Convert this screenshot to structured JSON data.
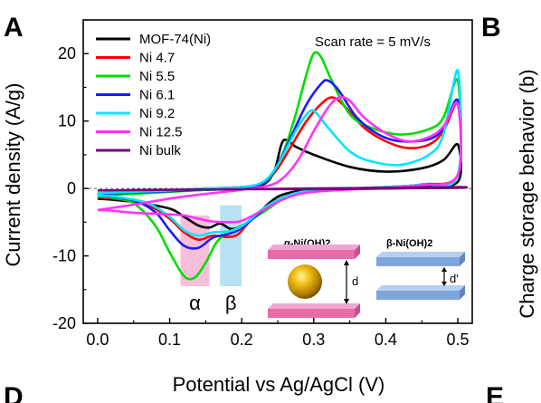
{
  "panels": {
    "a": "A",
    "b": "B",
    "d": "D",
    "e": "E"
  },
  "right_axis_label": "Charge storage behavior (b)",
  "chart_data": {
    "type": "line",
    "title": "",
    "xlabel": "Potential vs Ag/AgCl (V)",
    "ylabel": "Current density (A/g)",
    "xlim": [
      -0.02,
      0.52
    ],
    "ylim": [
      -20,
      25
    ],
    "xticks": [
      "0.0",
      "0.1",
      "0.2",
      "0.3",
      "0.4",
      "0.5"
    ],
    "yticks": [
      "-20",
      "-10",
      "0",
      "10",
      "20"
    ],
    "grid": false,
    "legend_position": "top-left",
    "annotation": "Scan rate = 5 mV/s",
    "series": [
      {
        "name": "MOF-74(Ni)",
        "color": "#000000",
        "anodic": [
          [
            0.0,
            -0.8
          ],
          [
            0.05,
            -0.6
          ],
          [
            0.1,
            -0.4
          ],
          [
            0.15,
            -0.2
          ],
          [
            0.2,
            0.0
          ],
          [
            0.23,
            0.6
          ],
          [
            0.245,
            2.5
          ],
          [
            0.255,
            6.5
          ],
          [
            0.262,
            7.2
          ],
          [
            0.275,
            6.2
          ],
          [
            0.3,
            5.0
          ],
          [
            0.35,
            3.2
          ],
          [
            0.4,
            2.5
          ],
          [
            0.45,
            3.0
          ],
          [
            0.48,
            4.2
          ],
          [
            0.5,
            6.5
          ]
        ],
        "cathodic": [
          [
            0.5,
            1.0
          ],
          [
            0.45,
            0.2
          ],
          [
            0.4,
            0.0
          ],
          [
            0.3,
            -0.2
          ],
          [
            0.26,
            -0.8
          ],
          [
            0.24,
            -2.0
          ],
          [
            0.22,
            -4.0
          ],
          [
            0.2,
            -5.5
          ],
          [
            0.185,
            -6.0
          ],
          [
            0.17,
            -5.2
          ],
          [
            0.155,
            -5.8
          ],
          [
            0.14,
            -5.5
          ],
          [
            0.12,
            -4.2
          ],
          [
            0.1,
            -3.0
          ],
          [
            0.05,
            -2.0
          ],
          [
            0.0,
            -1.5
          ]
        ]
      },
      {
        "name": "Ni 4.7",
        "color": "#ff0000",
        "anodic": [
          [
            0.0,
            -0.8
          ],
          [
            0.05,
            -0.6
          ],
          [
            0.1,
            -0.3
          ],
          [
            0.15,
            0.0
          ],
          [
            0.2,
            0.2
          ],
          [
            0.23,
            0.8
          ],
          [
            0.25,
            3.0
          ],
          [
            0.27,
            6.5
          ],
          [
            0.29,
            10.0
          ],
          [
            0.31,
            12.5
          ],
          [
            0.325,
            13.5
          ],
          [
            0.34,
            12.5
          ],
          [
            0.37,
            9.0
          ],
          [
            0.4,
            7.0
          ],
          [
            0.43,
            6.0
          ],
          [
            0.46,
            6.5
          ],
          [
            0.48,
            8.5
          ],
          [
            0.5,
            12.5
          ]
        ],
        "cathodic": [
          [
            0.5,
            2.0
          ],
          [
            0.45,
            0.6
          ],
          [
            0.4,
            0.2
          ],
          [
            0.3,
            -0.3
          ],
          [
            0.26,
            -1.2
          ],
          [
            0.23,
            -3.0
          ],
          [
            0.21,
            -5.0
          ],
          [
            0.195,
            -6.8
          ],
          [
            0.18,
            -7.2
          ],
          [
            0.16,
            -7.0
          ],
          [
            0.14,
            -7.6
          ],
          [
            0.12,
            -6.5
          ],
          [
            0.1,
            -4.5
          ],
          [
            0.07,
            -2.5
          ],
          [
            0.03,
            -1.6
          ],
          [
            0.0,
            -1.3
          ]
        ]
      },
      {
        "name": "Ni 5.5",
        "color": "#00dd00",
        "anodic": [
          [
            0.0,
            -1.0
          ],
          [
            0.05,
            -0.8
          ],
          [
            0.1,
            -0.5
          ],
          [
            0.15,
            -0.2
          ],
          [
            0.2,
            0.2
          ],
          [
            0.23,
            0.8
          ],
          [
            0.245,
            2.5
          ],
          [
            0.26,
            6.0
          ],
          [
            0.275,
            11.0
          ],
          [
            0.29,
            17.0
          ],
          [
            0.3,
            20.0
          ],
          [
            0.31,
            19.5
          ],
          [
            0.325,
            16.0
          ],
          [
            0.35,
            11.0
          ],
          [
            0.38,
            9.0
          ],
          [
            0.42,
            8.0
          ],
          [
            0.46,
            8.8
          ],
          [
            0.48,
            10.5
          ],
          [
            0.5,
            16.0
          ]
        ],
        "cathodic": [
          [
            0.5,
            2.0
          ],
          [
            0.45,
            0.6
          ],
          [
            0.4,
            0.2
          ],
          [
            0.3,
            -0.5
          ],
          [
            0.26,
            -1.5
          ],
          [
            0.23,
            -3.5
          ],
          [
            0.2,
            -5.5
          ],
          [
            0.18,
            -6.6
          ],
          [
            0.165,
            -8.0
          ],
          [
            0.15,
            -11.0
          ],
          [
            0.135,
            -13.2
          ],
          [
            0.12,
            -13.0
          ],
          [
            0.1,
            -9.5
          ],
          [
            0.08,
            -5.5
          ],
          [
            0.05,
            -2.2
          ],
          [
            0.02,
            -1.4
          ],
          [
            0.0,
            -1.2
          ]
        ]
      },
      {
        "name": "Ni 6.1",
        "color": "#1a1aff",
        "anodic": [
          [
            0.0,
            -0.8
          ],
          [
            0.05,
            -0.6
          ],
          [
            0.1,
            -0.4
          ],
          [
            0.15,
            -0.1
          ],
          [
            0.2,
            0.2
          ],
          [
            0.23,
            0.8
          ],
          [
            0.25,
            3.5
          ],
          [
            0.27,
            8.0
          ],
          [
            0.29,
            12.5
          ],
          [
            0.31,
            15.5
          ],
          [
            0.32,
            16.0
          ],
          [
            0.335,
            14.5
          ],
          [
            0.36,
            10.5
          ],
          [
            0.39,
            8.0
          ],
          [
            0.42,
            7.0
          ],
          [
            0.46,
            7.3
          ],
          [
            0.48,
            9.0
          ],
          [
            0.5,
            13.0
          ]
        ],
        "cathodic": [
          [
            0.5,
            2.0
          ],
          [
            0.45,
            0.6
          ],
          [
            0.4,
            0.2
          ],
          [
            0.3,
            -0.4
          ],
          [
            0.26,
            -1.3
          ],
          [
            0.23,
            -3.2
          ],
          [
            0.21,
            -5.0
          ],
          [
            0.195,
            -6.2
          ],
          [
            0.18,
            -6.8
          ],
          [
            0.16,
            -7.3
          ],
          [
            0.14,
            -8.8
          ],
          [
            0.12,
            -8.5
          ],
          [
            0.1,
            -6.2
          ],
          [
            0.08,
            -3.5
          ],
          [
            0.05,
            -1.8
          ],
          [
            0.0,
            -1.0
          ]
        ]
      },
      {
        "name": "Ni 9.2",
        "color": "#00e5ff",
        "anodic": [
          [
            0.0,
            -0.7
          ],
          [
            0.05,
            -0.5
          ],
          [
            0.1,
            -0.3
          ],
          [
            0.15,
            0.0
          ],
          [
            0.2,
            0.2
          ],
          [
            0.23,
            1.0
          ],
          [
            0.25,
            3.5
          ],
          [
            0.265,
            6.5
          ],
          [
            0.28,
            9.5
          ],
          [
            0.295,
            11.5
          ],
          [
            0.305,
            11.0
          ],
          [
            0.32,
            9.0
          ],
          [
            0.35,
            5.5
          ],
          [
            0.38,
            4.0
          ],
          [
            0.42,
            3.5
          ],
          [
            0.46,
            5.0
          ],
          [
            0.48,
            8.0
          ],
          [
            0.5,
            17.5
          ]
        ],
        "cathodic": [
          [
            0.5,
            2.0
          ],
          [
            0.45,
            0.6
          ],
          [
            0.4,
            0.2
          ],
          [
            0.3,
            -0.3
          ],
          [
            0.26,
            -1.2
          ],
          [
            0.23,
            -3.0
          ],
          [
            0.21,
            -4.8
          ],
          [
            0.195,
            -5.9
          ],
          [
            0.18,
            -6.4
          ],
          [
            0.16,
            -6.5
          ],
          [
            0.14,
            -7.0
          ],
          [
            0.12,
            -6.2
          ],
          [
            0.1,
            -4.2
          ],
          [
            0.07,
            -2.2
          ],
          [
            0.03,
            -1.3
          ],
          [
            0.0,
            -1.0
          ]
        ]
      },
      {
        "name": "Ni 12.5",
        "color": "#ff33ff",
        "anodic": [
          [
            0.0,
            -3.2
          ],
          [
            0.05,
            -2.4
          ],
          [
            0.1,
            -1.5
          ],
          [
            0.15,
            -0.8
          ],
          [
            0.2,
            -0.2
          ],
          [
            0.24,
            0.5
          ],
          [
            0.26,
            1.8
          ],
          [
            0.28,
            4.5
          ],
          [
            0.3,
            8.5
          ],
          [
            0.32,
            12.0
          ],
          [
            0.335,
            13.5
          ],
          [
            0.35,
            13.0
          ],
          [
            0.37,
            10.5
          ],
          [
            0.4,
            8.2
          ],
          [
            0.43,
            7.0
          ],
          [
            0.46,
            7.6
          ],
          [
            0.48,
            9.2
          ],
          [
            0.5,
            12.5
          ]
        ],
        "cathodic": [
          [
            0.5,
            2.0
          ],
          [
            0.45,
            0.5
          ],
          [
            0.4,
            0.1
          ],
          [
            0.3,
            -0.5
          ],
          [
            0.26,
            -1.5
          ],
          [
            0.23,
            -3.2
          ],
          [
            0.2,
            -4.8
          ],
          [
            0.18,
            -5.0
          ],
          [
            0.16,
            -4.9
          ],
          [
            0.14,
            -4.5
          ],
          [
            0.12,
            -4.0
          ],
          [
            0.09,
            -3.8
          ],
          [
            0.05,
            -3.6
          ],
          [
            0.02,
            -3.3
          ],
          [
            0.0,
            -3.2
          ]
        ]
      },
      {
        "name": "Ni bulk",
        "color": "#7a007a",
        "anodic": [
          [
            0.0,
            -0.3
          ],
          [
            0.1,
            -0.2
          ],
          [
            0.2,
            -0.1
          ],
          [
            0.3,
            0.0
          ],
          [
            0.4,
            0.1
          ],
          [
            0.5,
            0.2
          ]
        ],
        "cathodic": [
          [
            0.5,
            0.1
          ],
          [
            0.4,
            0.0
          ],
          [
            0.3,
            -0.1
          ],
          [
            0.2,
            -0.1
          ],
          [
            0.1,
            -0.2
          ],
          [
            0.0,
            -0.3
          ]
        ]
      }
    ],
    "peak_bands": [
      {
        "label": "α",
        "x_range": [
          0.115,
          0.155
        ],
        "y_range": [
          -14.5,
          -4
        ],
        "color": "#f7a8cc"
      },
      {
        "label": "β",
        "x_range": [
          0.17,
          0.2
        ],
        "y_range": [
          -14.5,
          -2.5
        ],
        "color": "#9fd8ee"
      }
    ]
  },
  "insets": {
    "alpha": {
      "title": "α-Ni(OH)2",
      "gap_label": "d"
    },
    "beta": {
      "title": "β-Ni(OH)2",
      "gap_label": "d'"
    }
  }
}
